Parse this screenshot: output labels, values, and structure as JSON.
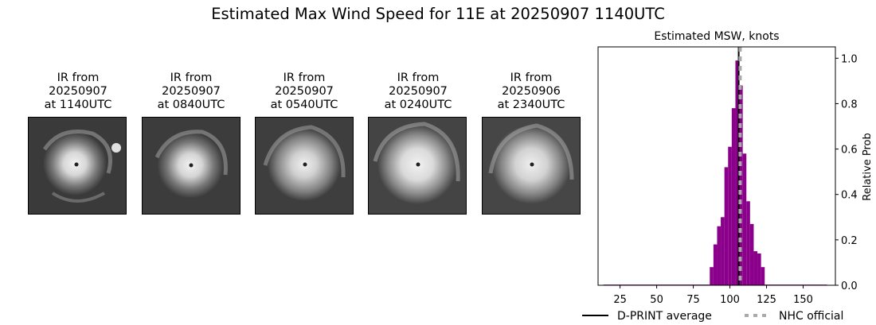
{
  "figure": {
    "title": "Estimated Max Wind Speed for 11E at 20250907 1140UTC"
  },
  "panels": [
    {
      "title_line1": "IR from",
      "title_line2": "20250907",
      "title_line3": "at 1140UTC"
    },
    {
      "title_line1": "IR from",
      "title_line2": "20250907",
      "title_line3": "at 0840UTC"
    },
    {
      "title_line1": "IR from",
      "title_line2": "20250907",
      "title_line3": "at 0540UTC"
    },
    {
      "title_line1": "IR from",
      "title_line2": "20250907",
      "title_line3": "at 0240UTC"
    },
    {
      "title_line1": "IR from",
      "title_line2": "20250906",
      "title_line3": "at 2340UTC"
    }
  ],
  "chart_data": {
    "type": "bar",
    "title": "Estimated MSW, knots",
    "ylabel": "Relative Prob",
    "xlabel": "",
    "xlim": [
      10,
      172
    ],
    "ylim": [
      0,
      1.05
    ],
    "xticks": [
      25,
      50,
      75,
      100,
      125,
      150
    ],
    "yticks": [
      0.0,
      0.2,
      0.4,
      0.6,
      0.8,
      1.0
    ],
    "ytick_labels": [
      "0.0",
      "0.2",
      "0.4",
      "0.6",
      "0.8",
      "1.0"
    ],
    "bar_color": "#8b008b",
    "bin_width": 2.5,
    "bins": [
      {
        "x": 15,
        "y": 0.003
      },
      {
        "x": 17.5,
        "y": 0.003
      },
      {
        "x": 20,
        "y": 0.003
      },
      {
        "x": 22.5,
        "y": 0.003
      },
      {
        "x": 25,
        "y": 0.003
      },
      {
        "x": 27.5,
        "y": 0.003
      },
      {
        "x": 30,
        "y": 0.003
      },
      {
        "x": 32.5,
        "y": 0.003
      },
      {
        "x": 35,
        "y": 0.003
      },
      {
        "x": 37.5,
        "y": 0.003
      },
      {
        "x": 40,
        "y": 0.003
      },
      {
        "x": 42.5,
        "y": 0.003
      },
      {
        "x": 45,
        "y": 0.003
      },
      {
        "x": 47.5,
        "y": 0.003
      },
      {
        "x": 50,
        "y": 0.003
      },
      {
        "x": 52.5,
        "y": 0.003
      },
      {
        "x": 55,
        "y": 0.003
      },
      {
        "x": 57.5,
        "y": 0.003
      },
      {
        "x": 60,
        "y": 0.003
      },
      {
        "x": 62.5,
        "y": 0.003
      },
      {
        "x": 65,
        "y": 0.003
      },
      {
        "x": 67.5,
        "y": 0.003
      },
      {
        "x": 70,
        "y": 0.003
      },
      {
        "x": 72.5,
        "y": 0.003
      },
      {
        "x": 75,
        "y": 0.003
      },
      {
        "x": 77.5,
        "y": 0.003
      },
      {
        "x": 80,
        "y": 0.003
      },
      {
        "x": 82.5,
        "y": 0.003
      },
      {
        "x": 85,
        "y": 0.003
      },
      {
        "x": 87.5,
        "y": 0.08
      },
      {
        "x": 90,
        "y": 0.18
      },
      {
        "x": 92.5,
        "y": 0.26
      },
      {
        "x": 95,
        "y": 0.3
      },
      {
        "x": 97.5,
        "y": 0.52
      },
      {
        "x": 100,
        "y": 0.61
      },
      {
        "x": 102.5,
        "y": 0.78
      },
      {
        "x": 105,
        "y": 0.99
      },
      {
        "x": 107.5,
        "y": 0.88
      },
      {
        "x": 110,
        "y": 0.58
      },
      {
        "x": 112.5,
        "y": 0.37
      },
      {
        "x": 115,
        "y": 0.27
      },
      {
        "x": 117.5,
        "y": 0.15
      },
      {
        "x": 120,
        "y": 0.14
      },
      {
        "x": 122.5,
        "y": 0.08
      },
      {
        "x": 125,
        "y": 0.003
      },
      {
        "x": 127.5,
        "y": 0.003
      },
      {
        "x": 130,
        "y": 0.003
      },
      {
        "x": 132.5,
        "y": 0.003
      },
      {
        "x": 135,
        "y": 0.003
      },
      {
        "x": 137.5,
        "y": 0.003
      },
      {
        "x": 140,
        "y": 0.003
      },
      {
        "x": 142.5,
        "y": 0.003
      },
      {
        "x": 145,
        "y": 0.003
      },
      {
        "x": 147.5,
        "y": 0.003
      },
      {
        "x": 150,
        "y": 0.003
      },
      {
        "x": 152.5,
        "y": 0.003
      },
      {
        "x": 155,
        "y": 0.003
      },
      {
        "x": 157.5,
        "y": 0.003
      },
      {
        "x": 160,
        "y": 0.003
      },
      {
        "x": 162.5,
        "y": 0.003
      },
      {
        "x": 165,
        "y": 0.003
      }
    ],
    "dprint_average": 106,
    "nhc_official": 107,
    "legend_placement": "bottom",
    "series": [
      {
        "name": "D-PRINT average",
        "color": "#000000",
        "style": "solid"
      },
      {
        "name": "NHC official",
        "color": "#aaaaaa",
        "style": "dashed"
      }
    ]
  }
}
